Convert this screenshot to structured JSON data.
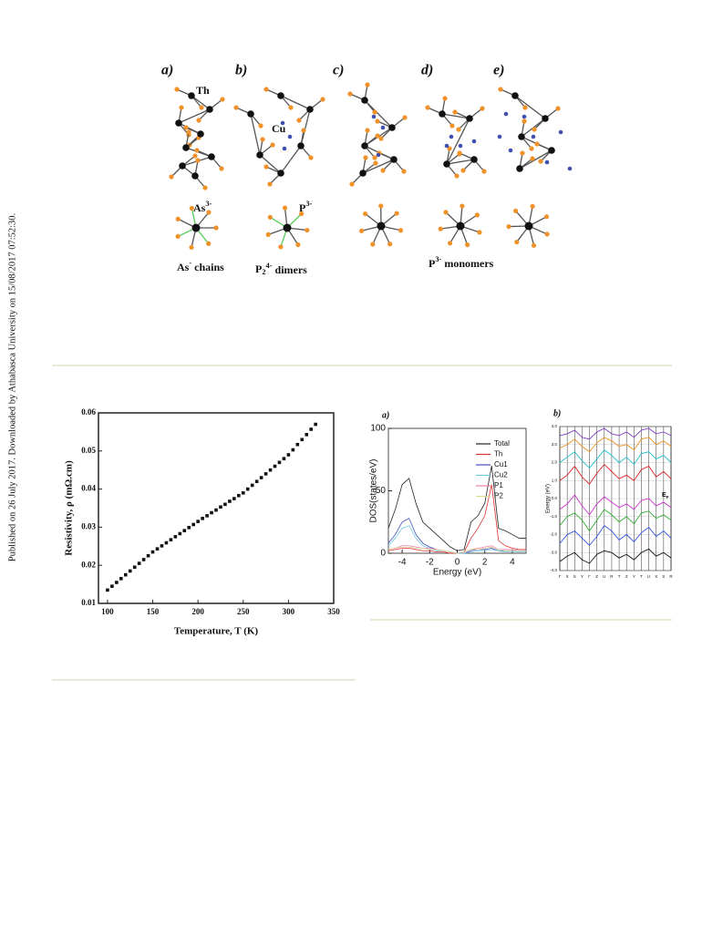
{
  "side_note": "Published on 26 July 2017. Downloaded by Athabasca University on 15/08/2017 07:52:30.",
  "figure_1": {
    "panel_labels": [
      "a)",
      "b)",
      "c)",
      "d)",
      "e)"
    ],
    "atom_labels": {
      "th": "Th",
      "cu": "Cu",
      "as": {
        "text": "As",
        "sup": "3-"
      },
      "p": {
        "text": "P",
        "sup": "3-"
      }
    },
    "captions": [
      {
        "text": "As",
        "sup": "-",
        "tail": " chains"
      },
      {
        "text": "P",
        "sub": "2",
        "sup": "4-",
        "tail": " dimers"
      },
      {
        "text": "P",
        "sup": "3-",
        "tail": " monomers"
      }
    ]
  },
  "chart_data": [
    {
      "type": "scatter",
      "x_label": "Temperature, T (K)",
      "y_label": "Resistivity, ρ (mΩ.cm)",
      "color": "#111111",
      "x": [
        100,
        105,
        110,
        115,
        120,
        125,
        130,
        135,
        140,
        145,
        150,
        155,
        160,
        165,
        170,
        175,
        180,
        185,
        190,
        195,
        200,
        205,
        210,
        215,
        220,
        225,
        230,
        235,
        240,
        245,
        250,
        255,
        260,
        265,
        270,
        275,
        280,
        285,
        290,
        295,
        300,
        305,
        310,
        315,
        320,
        325,
        330
      ],
      "values": [
        0.0135,
        0.0145,
        0.0155,
        0.0165,
        0.0175,
        0.0185,
        0.0195,
        0.0205,
        0.0215,
        0.0225,
        0.0235,
        0.0243,
        0.0251,
        0.0259,
        0.0267,
        0.0275,
        0.0283,
        0.0291,
        0.0299,
        0.0307,
        0.0315,
        0.0323,
        0.033,
        0.0338,
        0.0345,
        0.0353,
        0.036,
        0.0368,
        0.0375,
        0.0383,
        0.039,
        0.04,
        0.041,
        0.042,
        0.043,
        0.044,
        0.045,
        0.046,
        0.047,
        0.048,
        0.049,
        0.0503,
        0.0517,
        0.053,
        0.0543,
        0.0557,
        0.057
      ],
      "xlim": [
        90,
        350
      ],
      "ylim": [
        0.01,
        0.06
      ],
      "xticks": [
        100,
        150,
        200,
        250,
        300,
        350
      ],
      "yticks": [
        0.01,
        0.02,
        0.03,
        0.04,
        0.05,
        0.06
      ]
    },
    {
      "type": "line",
      "panel_label": "a)",
      "x_label": "Energy (eV)",
      "y_label": "DOS(states/eV)",
      "legend": "upper right",
      "x": [
        -5,
        -4.5,
        -4,
        -3.5,
        -3,
        -2.5,
        -2,
        -1.5,
        -1,
        -0.5,
        0,
        0.5,
        1,
        1.5,
        2,
        2.5,
        3,
        3.5,
        4,
        4.5,
        5
      ],
      "series": [
        {
          "name": "Total",
          "color": "#222222",
          "values": [
            20,
            35,
            55,
            60,
            40,
            25,
            20,
            15,
            10,
            5,
            2,
            3,
            25,
            30,
            40,
            70,
            20,
            18,
            15,
            12,
            12
          ]
        },
        {
          "name": "Th",
          "color": "#e03030",
          "values": [
            2,
            3,
            4,
            4,
            3,
            2,
            2,
            1,
            1,
            0,
            0,
            1,
            12,
            20,
            30,
            55,
            10,
            6,
            4,
            3,
            3
          ]
        },
        {
          "name": "Cu1",
          "color": "#4050c0",
          "values": [
            8,
            15,
            25,
            28,
            15,
            8,
            5,
            3,
            2,
            1,
            0,
            0,
            2,
            3,
            3,
            4,
            2,
            2,
            2,
            2,
            2
          ]
        },
        {
          "name": "Cu2",
          "color": "#70c8e8",
          "values": [
            6,
            12,
            20,
            22,
            12,
            6,
            4,
            2,
            2,
            1,
            0,
            0,
            1,
            2,
            2,
            3,
            2,
            1,
            1,
            1,
            1
          ]
        },
        {
          "name": "P1",
          "color": "#f080b0",
          "values": [
            3,
            4,
            6,
            6,
            5,
            4,
            4,
            3,
            2,
            1,
            0,
            1,
            3,
            4,
            5,
            6,
            3,
            3,
            3,
            2,
            2
          ]
        },
        {
          "name": "P2",
          "color": "#d8d890",
          "values": [
            3,
            4,
            5,
            5,
            4,
            4,
            3,
            3,
            2,
            1,
            0,
            1,
            3,
            3,
            4,
            5,
            3,
            2,
            2,
            2,
            2
          ]
        }
      ],
      "xlim": [
        -5,
        5
      ],
      "ylim": [
        0,
        100
      ],
      "xticks": [
        -4,
        -2,
        0,
        2,
        4
      ],
      "yticks": [
        0,
        50,
        100
      ]
    },
    {
      "type": "line",
      "panel_label": "b)",
      "y_label": "Energy (eV)",
      "annotation": {
        "text": "E",
        "sub": "F"
      },
      "categories": [
        "Γ",
        "X",
        "S",
        "Y",
        "Γ",
        "Z",
        "U",
        "R",
        "T",
        "Z",
        "Y",
        "T",
        "U",
        "X",
        "S",
        "R"
      ],
      "series": [
        {
          "color": "#111111",
          "values": [
            -3.5,
            -3.2,
            -3.0,
            -3.4,
            -3.6,
            -3.1,
            -2.9,
            -3.0,
            -3.3,
            -3.1,
            -3.4,
            -3.0,
            -2.8,
            -3.2,
            -3.0,
            -3.3
          ]
        },
        {
          "color": "#3050e0",
          "values": [
            -2.5,
            -2.0,
            -1.8,
            -2.2,
            -2.6,
            -2.1,
            -1.5,
            -1.8,
            -2.3,
            -2.0,
            -2.4,
            -1.9,
            -1.6,
            -2.1,
            -1.8,
            -2.2
          ]
        },
        {
          "color": "#30b030",
          "values": [
            -1.5,
            -1.0,
            -0.8,
            -1.2,
            -1.8,
            -1.2,
            -0.6,
            -0.9,
            -1.3,
            -1.0,
            -1.4,
            -0.8,
            -0.7,
            -1.1,
            -0.9,
            -1.2
          ]
        },
        {
          "color": "#d030d0",
          "values": [
            -0.6,
            -0.3,
            0.2,
            -0.4,
            -0.9,
            -0.3,
            0.1,
            -0.2,
            -0.5,
            -0.3,
            -0.6,
            -0.1,
            0.0,
            -0.4,
            -0.2,
            -0.5
          ]
        },
        {
          "color": "#e02020",
          "values": [
            1.0,
            1.3,
            1.8,
            1.2,
            0.8,
            1.4,
            1.9,
            1.5,
            1.1,
            1.3,
            1.0,
            1.6,
            1.8,
            1.2,
            1.5,
            1.1
          ]
        },
        {
          "color": "#20c0d0",
          "values": [
            2.0,
            2.3,
            2.6,
            2.1,
            1.7,
            2.2,
            2.7,
            2.4,
            2.0,
            2.3,
            1.9,
            2.5,
            2.6,
            2.2,
            2.4,
            2.0
          ]
        },
        {
          "color": "#f09020",
          "values": [
            2.8,
            3.0,
            3.3,
            2.9,
            2.6,
            3.1,
            3.4,
            3.2,
            2.9,
            3.0,
            2.7,
            3.3,
            3.4,
            3.0,
            3.2,
            2.9
          ]
        },
        {
          "color": "#8040c0",
          "values": [
            3.5,
            3.6,
            3.8,
            3.4,
            3.3,
            3.7,
            3.9,
            3.6,
            3.5,
            3.7,
            3.4,
            3.8,
            3.9,
            3.6,
            3.7,
            3.5
          ]
        }
      ],
      "ylim": [
        -4,
        4
      ],
      "yticks": [
        {
          "value": 4,
          "label": "4.0"
        },
        {
          "value": 3,
          "label": "3.0"
        },
        {
          "value": 2,
          "label": "2.0"
        },
        {
          "value": 1,
          "label": "1.0"
        },
        {
          "value": 0,
          "label": "0.0"
        },
        {
          "value": -1,
          "label": "-1.0"
        },
        {
          "value": -2,
          "label": "-2.0"
        },
        {
          "value": -3,
          "label": "-3.0"
        },
        {
          "value": -4,
          "label": "-4.0"
        }
      ]
    }
  ]
}
